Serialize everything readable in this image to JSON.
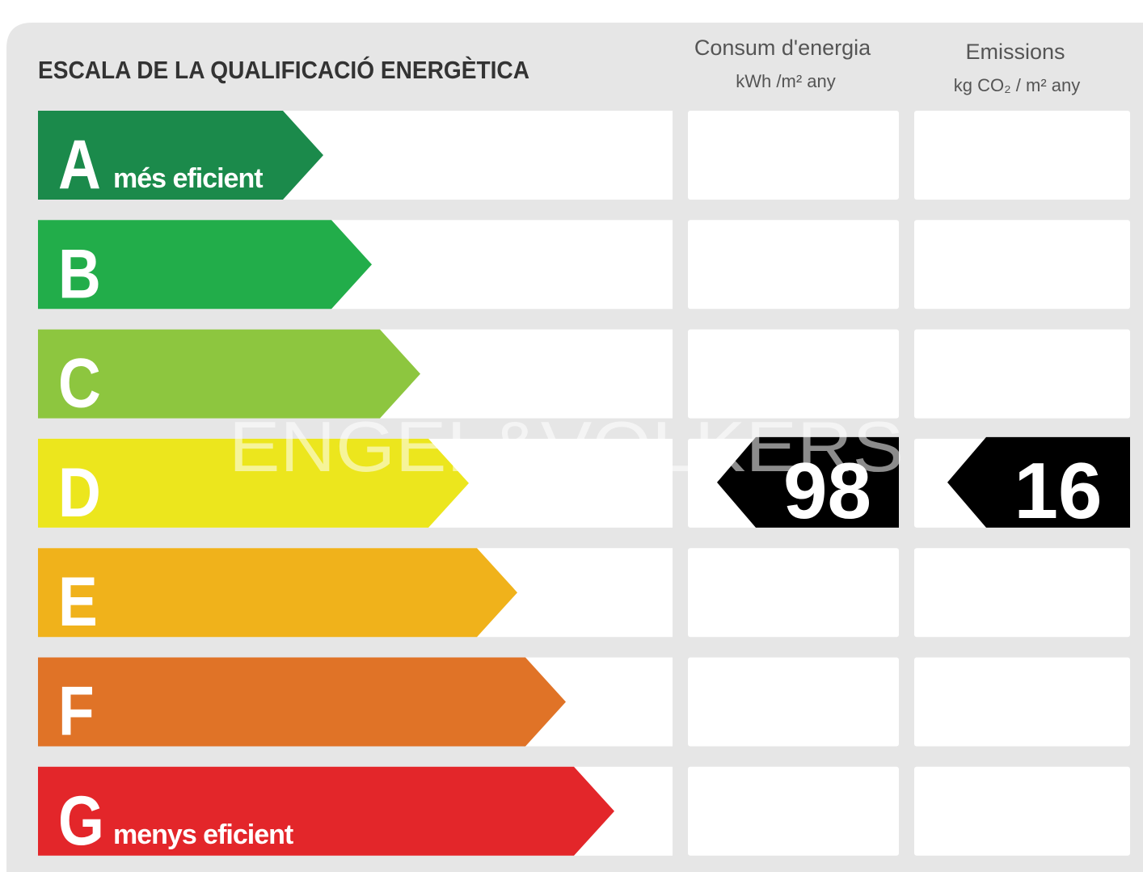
{
  "title": "ESCALA DE LA QUALIFICACIÓ ENERGÈTICA",
  "columns": {
    "consumption": {
      "title": "Consum d'energia",
      "unit": "kWh /m² any"
    },
    "emissions": {
      "title": "Emissions",
      "unit": "kg CO₂ / m² any"
    }
  },
  "watermark": "ENGEL&VÖLKERS",
  "rows": [
    {
      "letter": "A",
      "note": "més eficient",
      "color": "#1b8a4b"
    },
    {
      "letter": "B",
      "color": "#22ad4a"
    },
    {
      "letter": "C",
      "color": "#8dc63f"
    },
    {
      "letter": "D",
      "color": "#ece61d",
      "consumption": 98,
      "emissions": 16
    },
    {
      "letter": "E",
      "color": "#f0b21b"
    },
    {
      "letter": "F",
      "color": "#e07327"
    },
    {
      "letter": "G",
      "note": "menys eficient",
      "color": "#e3262a"
    }
  ]
}
